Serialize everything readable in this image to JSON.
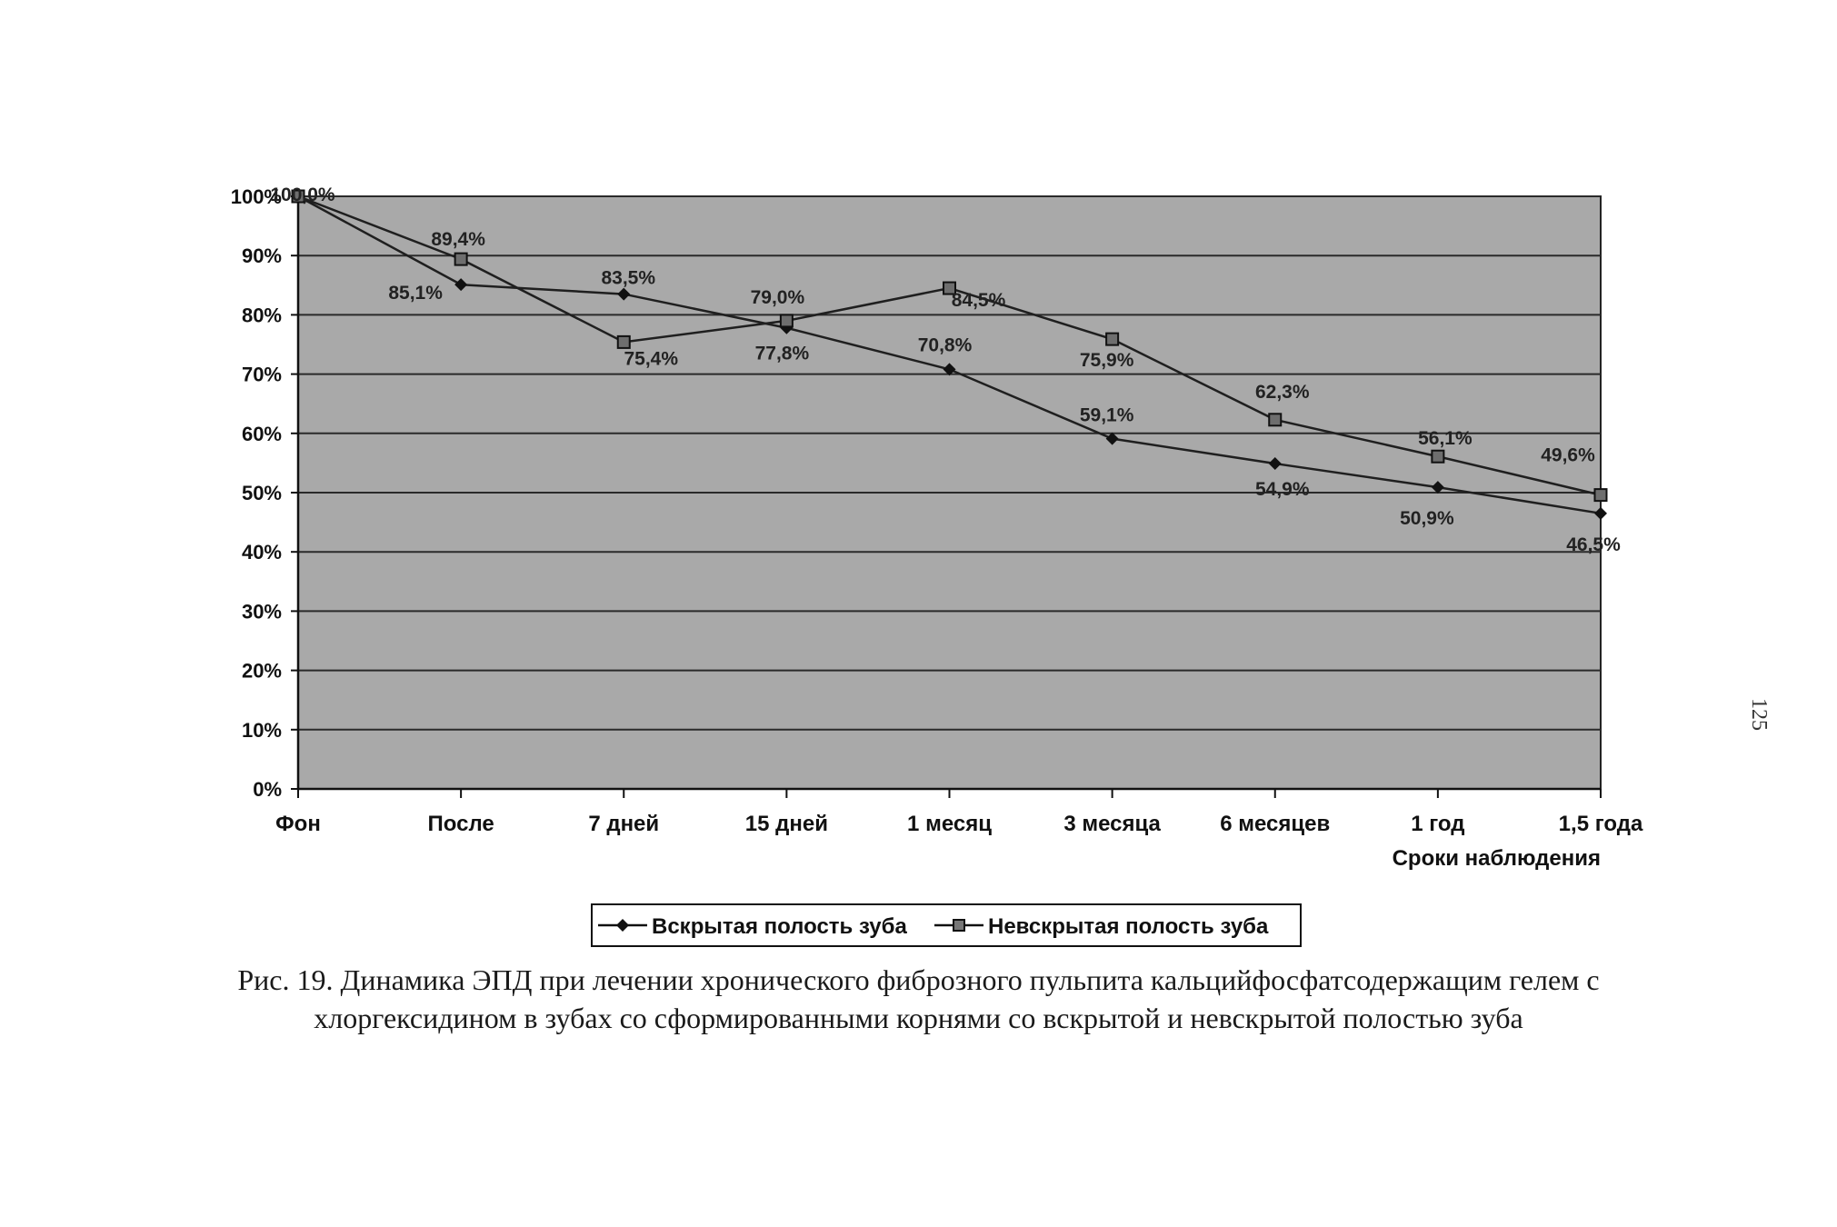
{
  "chart_data": {
    "type": "line",
    "categories": [
      "Фон",
      "После",
      "7 дней",
      "15 дней",
      "1 месяц",
      "3 месяца",
      "6 месяцев",
      "1 год",
      "1,5 года"
    ],
    "series": [
      {
        "name": "Вскрытая полость зуба",
        "marker": "diamond",
        "values": [
          100.0,
          85.1,
          83.5,
          77.8,
          70.8,
          59.1,
          54.9,
          50.9,
          46.5
        ],
        "labels": [
          "",
          "85,1%",
          "83,5%",
          "77,8%",
          "70,8%",
          "59,1%",
          "54,9%",
          "50,9%",
          "46,5%"
        ]
      },
      {
        "name": "Невскрытая полость зуба",
        "marker": "square",
        "values": [
          100.0,
          89.4,
          75.4,
          79.0,
          84.5,
          75.9,
          62.3,
          56.1,
          49.6
        ],
        "labels": [
          "100,0%",
          "89,4%",
          "75,4%",
          "79,0%",
          "84,5%",
          "75,9%",
          "62,3%",
          "56,1%",
          "49,6%"
        ]
      }
    ],
    "y_ticks": [
      "0%",
      "10%",
      "20%",
      "30%",
      "40%",
      "50%",
      "60%",
      "70%",
      "80%",
      "90%",
      "100%"
    ],
    "ylim": [
      0,
      100
    ],
    "xlabel": "Сроки наблюдения",
    "ylabel": "",
    "title": "",
    "grid": true,
    "legend": "bottom",
    "colors": {
      "plot_bg": "#a9a9a9",
      "line": "#1f1f1f",
      "grid": "#2a2a2a"
    }
  },
  "caption": {
    "line1": "Рис. 19. Динамика ЭПД при лечении хронического фиброзного пульпита кальцийфосфатсодержащим гелем с",
    "line2": "хлоргексидином в зубах со сформированными корнями со вскрытой и невскрытой полостью зуба"
  },
  "page_number": "125"
}
